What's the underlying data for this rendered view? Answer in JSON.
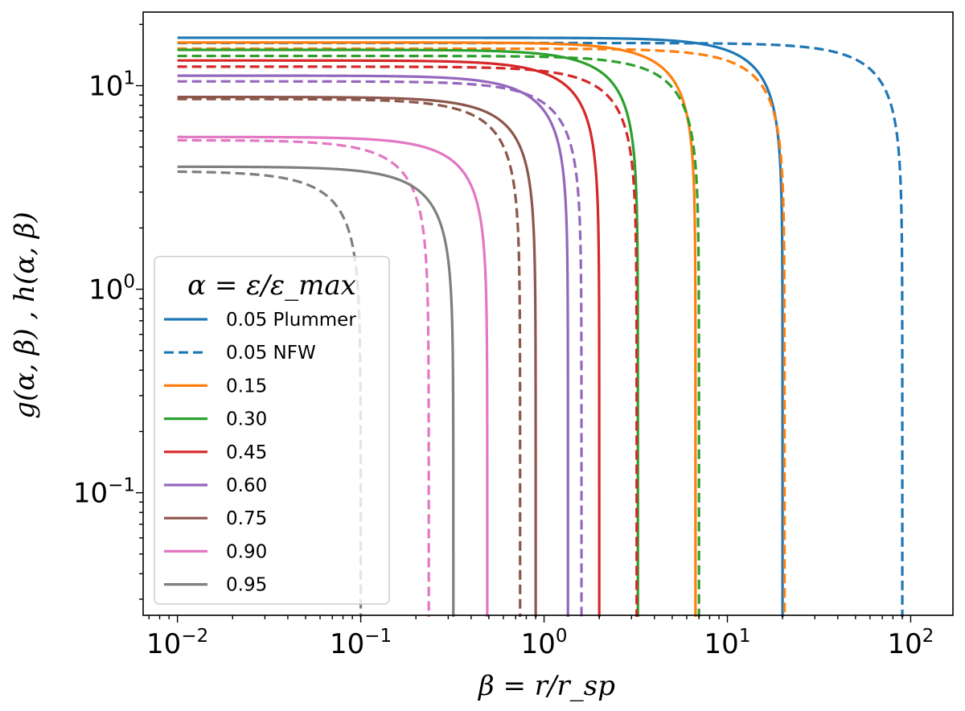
{
  "chart_data": {
    "type": "line",
    "xlabel": "β = r/r_sp",
    "ylabel": "g(α, β) , h(α, β)",
    "xscale": "log",
    "yscale": "log",
    "xlim": [
      0.0065,
      170
    ],
    "ylim": [
      0.025,
      23
    ],
    "grid": false,
    "x_ticks": [
      {
        "value": 0.01,
        "base": "10",
        "exp": "−2"
      },
      {
        "value": 0.1,
        "base": "10",
        "exp": "−1"
      },
      {
        "value": 1,
        "base": "10",
        "exp": "0"
      },
      {
        "value": 10,
        "base": "10",
        "exp": "1"
      },
      {
        "value": 100,
        "base": "10",
        "exp": "2"
      }
    ],
    "y_ticks": [
      {
        "value": 0.1,
        "base": "10",
        "exp": "−1"
      },
      {
        "value": 1,
        "base": "10",
        "exp": "0"
      },
      {
        "value": 10,
        "base": "10",
        "exp": "1"
      }
    ],
    "legend": {
      "title": "α = ε/ε_max",
      "placement": "lower-left",
      "entries": [
        {
          "label": "0.05 Plummer",
          "color": "#1f77b4",
          "dashed": false
        },
        {
          "label": "0.05 NFW",
          "color": "#1f77b4",
          "dashed": true
        },
        {
          "label": "0.15",
          "color": "#ff7f0e",
          "dashed": false
        },
        {
          "label": "0.30",
          "color": "#2ca02c",
          "dashed": false
        },
        {
          "label": "0.45",
          "color": "#d62728",
          "dashed": false
        },
        {
          "label": "0.60",
          "color": "#9467bd",
          "dashed": false
        },
        {
          "label": "0.75",
          "color": "#8c564b",
          "dashed": false
        },
        {
          "label": "0.90",
          "color": "#e377c2",
          "dashed": false
        },
        {
          "label": "0.95",
          "color": "#7f7f7f",
          "dashed": false
        }
      ]
    },
    "series": [
      {
        "alpha": 0.05,
        "color": "#1f77b4",
        "solid": {
          "y0": 17.2,
          "xc": 20.0
        },
        "dashed": {
          "y0": 16.2,
          "xc": 90.0
        }
      },
      {
        "alpha": 0.15,
        "color": "#ff7f0e",
        "solid": {
          "y0": 16.3,
          "xc": 6.7
        },
        "dashed": {
          "y0": 15.2,
          "xc": 20.5
        }
      },
      {
        "alpha": 0.3,
        "color": "#2ca02c",
        "solid": {
          "y0": 15.0,
          "xc": 3.25
        },
        "dashed": {
          "y0": 14.0,
          "xc": 7.0
        }
      },
      {
        "alpha": 0.45,
        "color": "#d62728",
        "solid": {
          "y0": 13.3,
          "xc": 2.0
        },
        "dashed": {
          "y0": 12.4,
          "xc": 3.2
        }
      },
      {
        "alpha": 0.6,
        "color": "#9467bd",
        "solid": {
          "y0": 11.2,
          "xc": 1.35
        },
        "dashed": {
          "y0": 10.5,
          "xc": 1.6
        }
      },
      {
        "alpha": 0.75,
        "color": "#8c564b",
        "solid": {
          "y0": 8.8,
          "xc": 0.9
        },
        "dashed": {
          "y0": 8.6,
          "xc": 0.74
        }
      },
      {
        "alpha": 0.9,
        "color": "#e377c2",
        "solid": {
          "y0": 5.6,
          "xc": 0.49
        },
        "dashed": {
          "y0": 5.4,
          "xc": 0.235
        }
      },
      {
        "alpha": 0.95,
        "color": "#7f7f7f",
        "solid": {
          "y0": 4.0,
          "xc": 0.32
        },
        "dashed": {
          "y0": 3.8,
          "xc": 0.1
        }
      }
    ]
  }
}
